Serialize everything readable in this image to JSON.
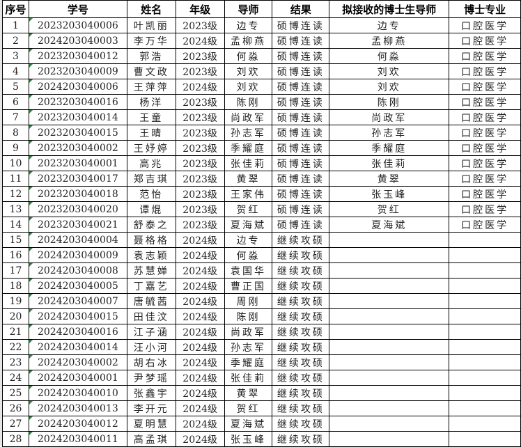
{
  "headers": [
    "序号",
    "学号",
    "姓名",
    "年级",
    "导师",
    "结果",
    "拟接收的博士生导师",
    "博士专业"
  ],
  "rows": [
    [
      "1",
      "2023203040006",
      "叶凯丽",
      "2023级",
      "边专",
      "硕博连读",
      "边专",
      "口腔医学"
    ],
    [
      "2",
      "2024203040003",
      "李万华",
      "2024级",
      "孟柳燕",
      "硕博连读",
      "孟柳燕",
      "口腔医学"
    ],
    [
      "3",
      "2023203040012",
      "郭浩",
      "2023级",
      "何淼",
      "硕博连读",
      "何淼",
      "口腔医学"
    ],
    [
      "4",
      "2023203040009",
      "曹文政",
      "2023级",
      "刘欢",
      "硕博连读",
      "刘欢",
      "口腔医学"
    ],
    [
      "5",
      "2024203040006",
      "王萍萍",
      "2024级",
      "刘欢",
      "硕博连读",
      "刘欢",
      "口腔医学"
    ],
    [
      "6",
      "2023203040016",
      "杨洋",
      "2023级",
      "陈刚",
      "硕博连读",
      "陈刚",
      "口腔医学"
    ],
    [
      "7",
      "2023203040014",
      "王童",
      "2023级",
      "尚政军",
      "硕博连读",
      "尚政军",
      "口腔医学"
    ],
    [
      "8",
      "2023203040015",
      "王晴",
      "2023级",
      "孙志军",
      "硕博连读",
      "孙志军",
      "口腔医学"
    ],
    [
      "9",
      "2023203040002",
      "王妤婷",
      "2023级",
      "季耀庭",
      "硕博连读",
      "季耀庭",
      "口腔医学"
    ],
    [
      "10",
      "2023203040001",
      "高兆",
      "2023级",
      "张佳莉",
      "硕博连读",
      "张佳莉",
      "口腔医学"
    ],
    [
      "11",
      "2023203040017",
      "郑吉琪",
      "2023级",
      "黄翠",
      "硕博连读",
      "黄翠",
      "口腔医学"
    ],
    [
      "12",
      "2023203040018",
      "范怡",
      "2023级",
      "王家伟",
      "硕博连读",
      "张玉峰",
      "口腔医学"
    ],
    [
      "13",
      "2023203040020",
      "谭焜",
      "2023级",
      "贺红",
      "硕博连读",
      "贺红",
      "口腔医学"
    ],
    [
      "14",
      "2023203040021",
      "舒泰之",
      "2023级",
      "夏海斌",
      "硕博连读",
      "夏海斌",
      "口腔医学"
    ],
    [
      "15",
      "2024203040004",
      "聂格格",
      "2024级",
      "边专",
      "继续攻硕",
      "",
      ""
    ],
    [
      "16",
      "2024203040009",
      "袁志颖",
      "2024级",
      "何淼",
      "继续攻硕",
      "",
      ""
    ],
    [
      "17",
      "2024203040008",
      "苏慧婵",
      "2024级",
      "袁国华",
      "继续攻硕",
      "",
      ""
    ],
    [
      "18",
      "2024203040005",
      "丁嘉艺",
      "2024级",
      "曹正国",
      "继续攻硕",
      "",
      ""
    ],
    [
      "19",
      "2024203040007",
      "唐毓茜",
      "2024级",
      "周刚",
      "继续攻硕",
      "",
      ""
    ],
    [
      "20",
      "2024203040015",
      "田佳汶",
      "2024级",
      "陈刚",
      "继续攻硕",
      "",
      ""
    ],
    [
      "21",
      "2024203040016",
      "江子涵",
      "2024级",
      "尚政军",
      "继续攻硕",
      "",
      ""
    ],
    [
      "22",
      "2024203040014",
      "汪小河",
      "2024级",
      "孙志军",
      "继续攻硕",
      "",
      ""
    ],
    [
      "23",
      "2024203040002",
      "胡右冰",
      "2024级",
      "季耀庭",
      "继续攻硕",
      "",
      ""
    ],
    [
      "24",
      "2024203040001",
      "尹梦瑶",
      "2024级",
      "张佳莉",
      "继续攻硕",
      "",
      ""
    ],
    [
      "25",
      "2024203040010",
      "张鑫宇",
      "2024级",
      "黄翠",
      "继续攻硕",
      "",
      ""
    ],
    [
      "26",
      "2024203040013",
      "李开元",
      "2024级",
      "贺红",
      "继续攻硕",
      "",
      ""
    ],
    [
      "27",
      "2024203040012",
      "夏明慧",
      "2024级",
      "夏海斌",
      "继续攻硕",
      "",
      ""
    ],
    [
      "28",
      "2024203040011",
      "高孟琪",
      "2024级",
      "张玉峰",
      "继续攻硕",
      "",
      ""
    ]
  ]
}
